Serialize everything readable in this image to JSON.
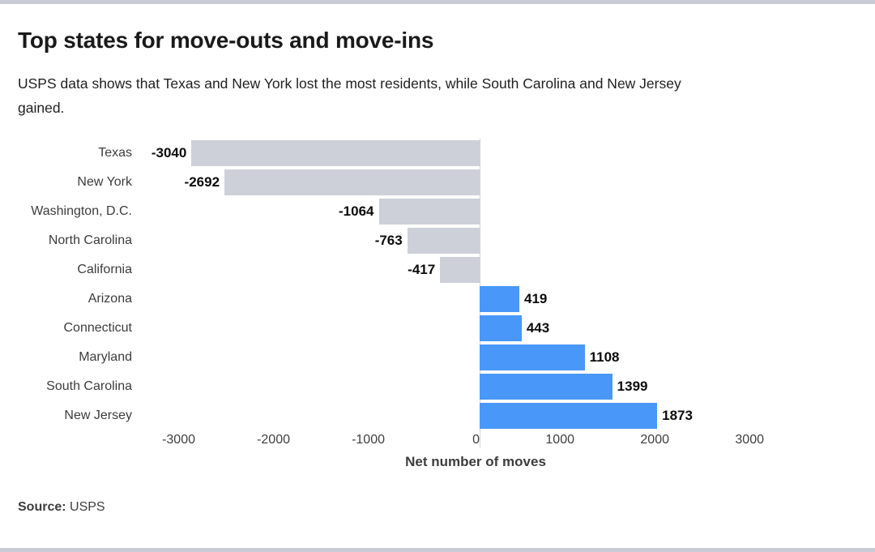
{
  "header": {
    "title": "Top states for move-outs and move-ins",
    "subtitle": "USPS data shows that Texas and New York lost the most residents, while South Carolina and New Jersey gained."
  },
  "footer": {
    "source_label": "Source:",
    "source_value": "USPS"
  },
  "chart_data": {
    "type": "bar",
    "orientation": "horizontal",
    "categories": [
      "Texas",
      "New York",
      "Washington, D.C.",
      "North Carolina",
      "California",
      "Arizona",
      "Connecticut",
      "Maryland",
      "South Carolina",
      "New Jersey"
    ],
    "values": [
      -3040,
      -2692,
      -1064,
      -763,
      -417,
      419,
      443,
      1108,
      1399,
      1873
    ],
    "value_labels": [
      "-3040",
      "-2692",
      "-1064",
      "-763",
      "-417",
      "419",
      "443",
      "1108",
      "1399",
      "1873"
    ],
    "xlabel": "Net number of moves",
    "x_ticks": [
      -3000,
      -2000,
      -1000,
      0,
      1000,
      2000,
      3000
    ],
    "x_tick_labels": [
      "-3000",
      "-2000",
      "-1000",
      "0",
      "1000",
      "2000",
      "3000"
    ],
    "xlim": [
      -3500,
      3500
    ],
    "grid": "zero-line-only",
    "legend": "none",
    "negative_color": "#CDD0D9",
    "positive_color": "#4997F8",
    "value_label_position": "outside-end"
  }
}
